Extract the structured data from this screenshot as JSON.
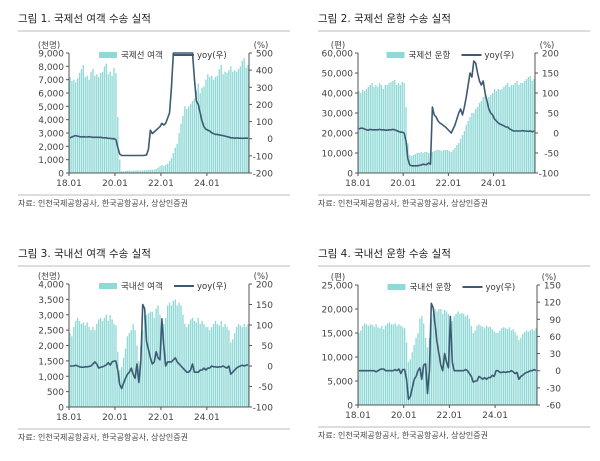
{
  "colors": {
    "bar": "#8fd9d6",
    "line": "#3e5a73",
    "axis": "#555555",
    "rule": "#bbbbbb"
  },
  "chart_data": [
    {
      "type": "bar+line",
      "title": "그림 1. 국제선 여객 수송 실적",
      "left_unit": "(천명)",
      "right_unit": "(%)",
      "legend": {
        "bar": "국제선 여객",
        "line": "yoy(우)"
      },
      "source": "자료: 인천국제공항공사, 한국공항공사, 상상인증권",
      "x_start": "2018.01",
      "x_ticks": [
        "18.01",
        "20.01",
        "22.01",
        "24.01"
      ],
      "x_tick_months": [
        0,
        24,
        48,
        72
      ],
      "ylim_left": [
        0,
        9000
      ],
      "ystep_left": 1000,
      "ylim_right": [
        -200,
        500
      ],
      "ystep_right": 100,
      "bars": [
        7200,
        6900,
        7000,
        6800,
        7100,
        7500,
        7800,
        8100,
        7200,
        7300,
        7000,
        7600,
        7800,
        7300,
        7400,
        7200,
        7500,
        7600,
        8000,
        8200,
        7400,
        7600,
        7300,
        7900,
        7500,
        4200,
        1000,
        150,
        120,
        150,
        180,
        190,
        170,
        170,
        180,
        200,
        190,
        180,
        190,
        200,
        210,
        230,
        250,
        250,
        260,
        300,
        400,
        500,
        600,
        500,
        600,
        700,
        900,
        1100,
        1500,
        1900,
        2200,
        3000,
        3700,
        4300,
        5000,
        4800,
        5000,
        5200,
        5400,
        5600,
        6200,
        6700,
        6000,
        6400,
        6500,
        7000,
        7400,
        7200,
        7300,
        7000,
        7200,
        7300,
        7800,
        8100,
        7400,
        7600,
        7500,
        7700,
        8000,
        7600,
        7700,
        7600,
        7800,
        8000,
        8400,
        8600,
        7900,
        8100
      ],
      "yoy": [
        5,
        10,
        15,
        18,
        15,
        12,
        10,
        12,
        10,
        10,
        12,
        10,
        8,
        8,
        8,
        8,
        8,
        6,
        5,
        5,
        2,
        2,
        0,
        0,
        -5,
        -50,
        -90,
        -98,
        -98,
        -98,
        -98,
        -98,
        -98,
        -98,
        -98,
        -98,
        -98,
        -98,
        -98,
        -97,
        -95,
        -60,
        50,
        30,
        40,
        50,
        60,
        70,
        90,
        80,
        90,
        120,
        150,
        300,
        520,
        600,
        600,
        600,
        600,
        600,
        600,
        600,
        600,
        600,
        600,
        350,
        220,
        200,
        150,
        100,
        70,
        55,
        50,
        45,
        35,
        30,
        25,
        25,
        22,
        20,
        18,
        15,
        12,
        10,
        5,
        5,
        3,
        5,
        3,
        3,
        2,
        3,
        3,
        3
      ]
    },
    {
      "type": "bar+line",
      "title": "그림 2. 국제선 운항 수송 실적",
      "left_unit": "(편)",
      "right_unit": "(%)",
      "legend": {
        "bar": "국제선 운항",
        "line": "yoy(우)"
      },
      "source": "자료: 인천국제공항공사, 한국공항공사, 상상인증권",
      "x_start": "2018.01",
      "x_ticks": [
        "18.01",
        "20.01",
        "22.01",
        "24.01"
      ],
      "x_tick_months": [
        0,
        24,
        48,
        72
      ],
      "ylim_left": [
        0,
        60000
      ],
      "ystep_left": 10000,
      "ylim_right": [
        -100,
        200
      ],
      "ystep_right": 50,
      "bars": [
        41000,
        40000,
        41500,
        41000,
        42000,
        43000,
        44000,
        45000,
        43000,
        44000,
        43000,
        45000,
        44000,
        42000,
        44000,
        44000,
        45000,
        45500,
        46000,
        46500,
        44000,
        45000,
        44000,
        45500,
        45000,
        33000,
        15000,
        9000,
        8500,
        9000,
        9500,
        10000,
        10000,
        10500,
        10000,
        10500,
        10500,
        10000,
        11000,
        10500,
        11000,
        11500,
        11500,
        11500,
        11000,
        11500,
        11500,
        11500,
        11000,
        10500,
        11500,
        12500,
        14000,
        15000,
        17000,
        19000,
        21000,
        24000,
        26000,
        28000,
        30000,
        30000,
        32000,
        33000,
        35000,
        36000,
        38000,
        39000,
        37000,
        38000,
        39000,
        40000,
        42000,
        41000,
        42000,
        41500,
        42000,
        43000,
        44000,
        45000,
        43000,
        44000,
        44000,
        45000,
        46000,
        44000,
        45000,
        45000,
        46000,
        47000,
        48000,
        48500,
        46000,
        47000
      ],
      "yoy": [
        10,
        12,
        12,
        10,
        8,
        7,
        9,
        8,
        8,
        8,
        8,
        9,
        8,
        8,
        7,
        7,
        8,
        8,
        9,
        8,
        6,
        4,
        2,
        2,
        0,
        -20,
        -65,
        -80,
        -82,
        -82,
        -82,
        -82,
        -81,
        -80,
        -78,
        -79,
        -79,
        -75,
        -78,
        65,
        45,
        40,
        30,
        25,
        22,
        18,
        15,
        10,
        5,
        0,
        10,
        20,
        35,
        50,
        60,
        45,
        65,
        90,
        120,
        150,
        140,
        180,
        175,
        150,
        130,
        120,
        130,
        100,
        80,
        60,
        50,
        45,
        35,
        30,
        25,
        22,
        20,
        18,
        15,
        15,
        10,
        8,
        5,
        5,
        5,
        5,
        5,
        6,
        5,
        5,
        4,
        5,
        3,
        5
      ]
    },
    {
      "type": "bar+line",
      "title": "그림 3. 국내선 여객 수송 실적",
      "left_unit": "(천명)",
      "right_unit": "(%)",
      "legend": {
        "bar": "국내선 여객",
        "line": "yoy(우)"
      },
      "source": "자료: 인천국제공항공사, 한국공항공사, 상상인증권",
      "x_start": "2018.01",
      "x_ticks": [
        "18.01",
        "20.01",
        "22.01",
        "24.01"
      ],
      "x_tick_months": [
        0,
        24,
        48,
        72
      ],
      "ylim_left": [
        0,
        4000
      ],
      "ystep_left": 500,
      "ylim_right": [
        -100,
        200
      ],
      "ystep_right": 50,
      "bars": [
        2400,
        2300,
        2600,
        2800,
        2900,
        2800,
        2700,
        2750,
        2650,
        2750,
        2600,
        2500,
        2600,
        2500,
        2700,
        2850,
        2900,
        2800,
        2900,
        3000,
        2800,
        3000,
        2850,
        2700,
        2650,
        1800,
        1200,
        1300,
        1600,
        1900,
        2300,
        2400,
        2500,
        2700,
        2500,
        2000,
        1500,
        2000,
        2500,
        3000,
        3000,
        3050,
        3100,
        3100,
        2900,
        3200,
        3300,
        3000,
        2600,
        2700,
        2900,
        3300,
        3400,
        3300,
        3450,
        3500,
        3300,
        3400,
        3300,
        3000,
        2700,
        2600,
        2700,
        2850,
        2900,
        2800,
        2750,
        2900,
        2700,
        2800,
        2700,
        2600,
        2600,
        2500,
        2600,
        2700,
        2800,
        2700,
        2650,
        2800,
        2600,
        2700,
        2600,
        2500,
        2100,
        2200,
        2400,
        2600,
        2700,
        2650,
        2600,
        2700,
        2600,
        2700
      ],
      "yoy": [
        0,
        0,
        0,
        2,
        0,
        -2,
        -3,
        -3,
        -2,
        -2,
        -1,
        0,
        5,
        10,
        5,
        -5,
        -3,
        -2,
        0,
        3,
        8,
        2,
        10,
        12,
        12,
        -10,
        -45,
        -55,
        -42,
        -30,
        -20,
        -15,
        -5,
        -20,
        -30,
        5,
        -40,
        10,
        150,
        140,
        60,
        40,
        20,
        5,
        10,
        35,
        20,
        15,
        115,
        50,
        0,
        10,
        10,
        10,
        15,
        20,
        10,
        5,
        0,
        -5,
        -10,
        -15,
        -15,
        -10,
        5,
        -15,
        -15,
        -15,
        -10,
        -10,
        -5,
        -10,
        -5,
        -5,
        0,
        -2,
        -2,
        -3,
        -2,
        -2,
        0,
        -3,
        -5,
        0,
        -20,
        -15,
        -10,
        -5,
        -2,
        0,
        2,
        0,
        2,
        3
      ]
    },
    {
      "type": "bar+line",
      "title": "그림 4. 국내선 운항 수송 실적",
      "left_unit": "(편)",
      "right_unit": "(%)",
      "legend": {
        "bar": "국내선 운항",
        "line": "yoy(우)"
      },
      "source": "자료: 인천국제공항공사, 한국공항공사, 상상인증권",
      "x_start": "2018.01",
      "x_ticks": [
        "18.01",
        "20.01",
        "22.01",
        "24.01"
      ],
      "x_tick_months": [
        0,
        24,
        48,
        72
      ],
      "ylim_left": [
        0,
        25000
      ],
      "ystep_left": 5000,
      "ylim_right": [
        -60,
        150
      ],
      "ystep_right": 30,
      "bars": [
        15000,
        15500,
        16500,
        17000,
        16800,
        16500,
        16800,
        16700,
        16300,
        16800,
        16200,
        16000,
        16500,
        15800,
        16600,
        17000,
        17200,
        16800,
        16800,
        17000,
        16500,
        16800,
        16500,
        16200,
        16000,
        13000,
        9000,
        9500,
        11000,
        12500,
        14000,
        15000,
        18000,
        18500,
        17000,
        14000,
        12000,
        14000,
        18000,
        19000,
        20000,
        19500,
        20000,
        20000,
        19000,
        19800,
        19500,
        19000,
        17500,
        17500,
        18500,
        19000,
        19500,
        19000,
        19200,
        19000,
        18500,
        18800,
        18000,
        16500,
        15000,
        15500,
        16500,
        16800,
        16500,
        16300,
        16000,
        16500,
        16200,
        16300,
        15800,
        15300,
        15000,
        15000,
        15500,
        16000,
        16200,
        16000,
        15800,
        16200,
        15500,
        15800,
        15200,
        14500,
        13500,
        14000,
        14800,
        15200,
        15500,
        15300,
        15600,
        15800,
        15500,
        16000
      ],
      "yoy": [
        0,
        0,
        0,
        0,
        0,
        0,
        0,
        0,
        0,
        -2,
        0,
        2,
        3,
        3,
        0,
        0,
        0,
        0,
        0,
        2,
        0,
        3,
        -5,
        2,
        2,
        -15,
        -50,
        -45,
        -30,
        -15,
        -10,
        0,
        5,
        -15,
        10,
        12,
        -40,
        0,
        118,
        110,
        80,
        50,
        30,
        10,
        0,
        30,
        15,
        5,
        95,
        15,
        0,
        0,
        0,
        0,
        0,
        0,
        2,
        0,
        -5,
        -10,
        -20,
        -18,
        -18,
        -10,
        -12,
        -15,
        -12,
        -15,
        -12,
        -12,
        -8,
        -10,
        0,
        0,
        -3,
        -3,
        -2,
        -3,
        -2,
        -2,
        0,
        -2,
        -5,
        -3,
        -15,
        -10,
        -8,
        -5,
        -3,
        -2,
        0,
        0,
        2,
        0
      ]
    }
  ]
}
